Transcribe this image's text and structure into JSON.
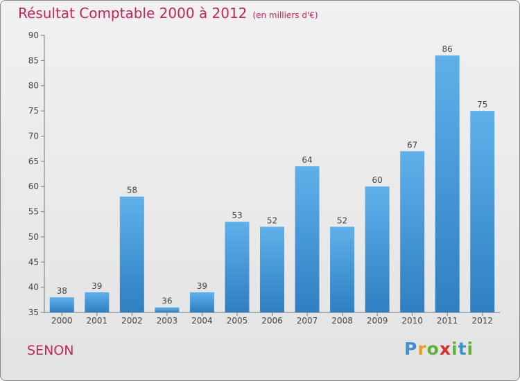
{
  "header": {
    "title": "Résultat Comptable 2000 à 2012",
    "subtitle": "(en milliers d'€)"
  },
  "footer": {
    "place": "SENON",
    "logo_text": "Proxiti",
    "logo_letters": [
      "P",
      "r",
      "o",
      "x",
      "i",
      "t",
      "i"
    ],
    "logo_colors": [
      "#3d8fd6",
      "#e8a020",
      "#5db234",
      "#d5302b",
      "#5db234",
      "#3d8fd6",
      "#5db234"
    ]
  },
  "chart_data": {
    "type": "bar",
    "categories": [
      "2000",
      "2001",
      "2002",
      "2003",
      "2004",
      "2005",
      "2006",
      "2007",
      "2008",
      "2009",
      "2010",
      "2011",
      "2012"
    ],
    "values": [
      38,
      39,
      58,
      36,
      39,
      53,
      52,
      64,
      52,
      60,
      67,
      86,
      75
    ],
    "title": "Résultat Comptable 2000 à 2012",
    "subtitle": "(en milliers d'€)",
    "xlabel": "",
    "ylabel": "",
    "ylim": [
      35,
      90
    ],
    "yticks": [
      35,
      40,
      45,
      50,
      55,
      60,
      65,
      70,
      75,
      80,
      85,
      90
    ],
    "grid": false,
    "legend": "none",
    "bar_color": "#3a92d6",
    "text_color": "#c4245a"
  }
}
